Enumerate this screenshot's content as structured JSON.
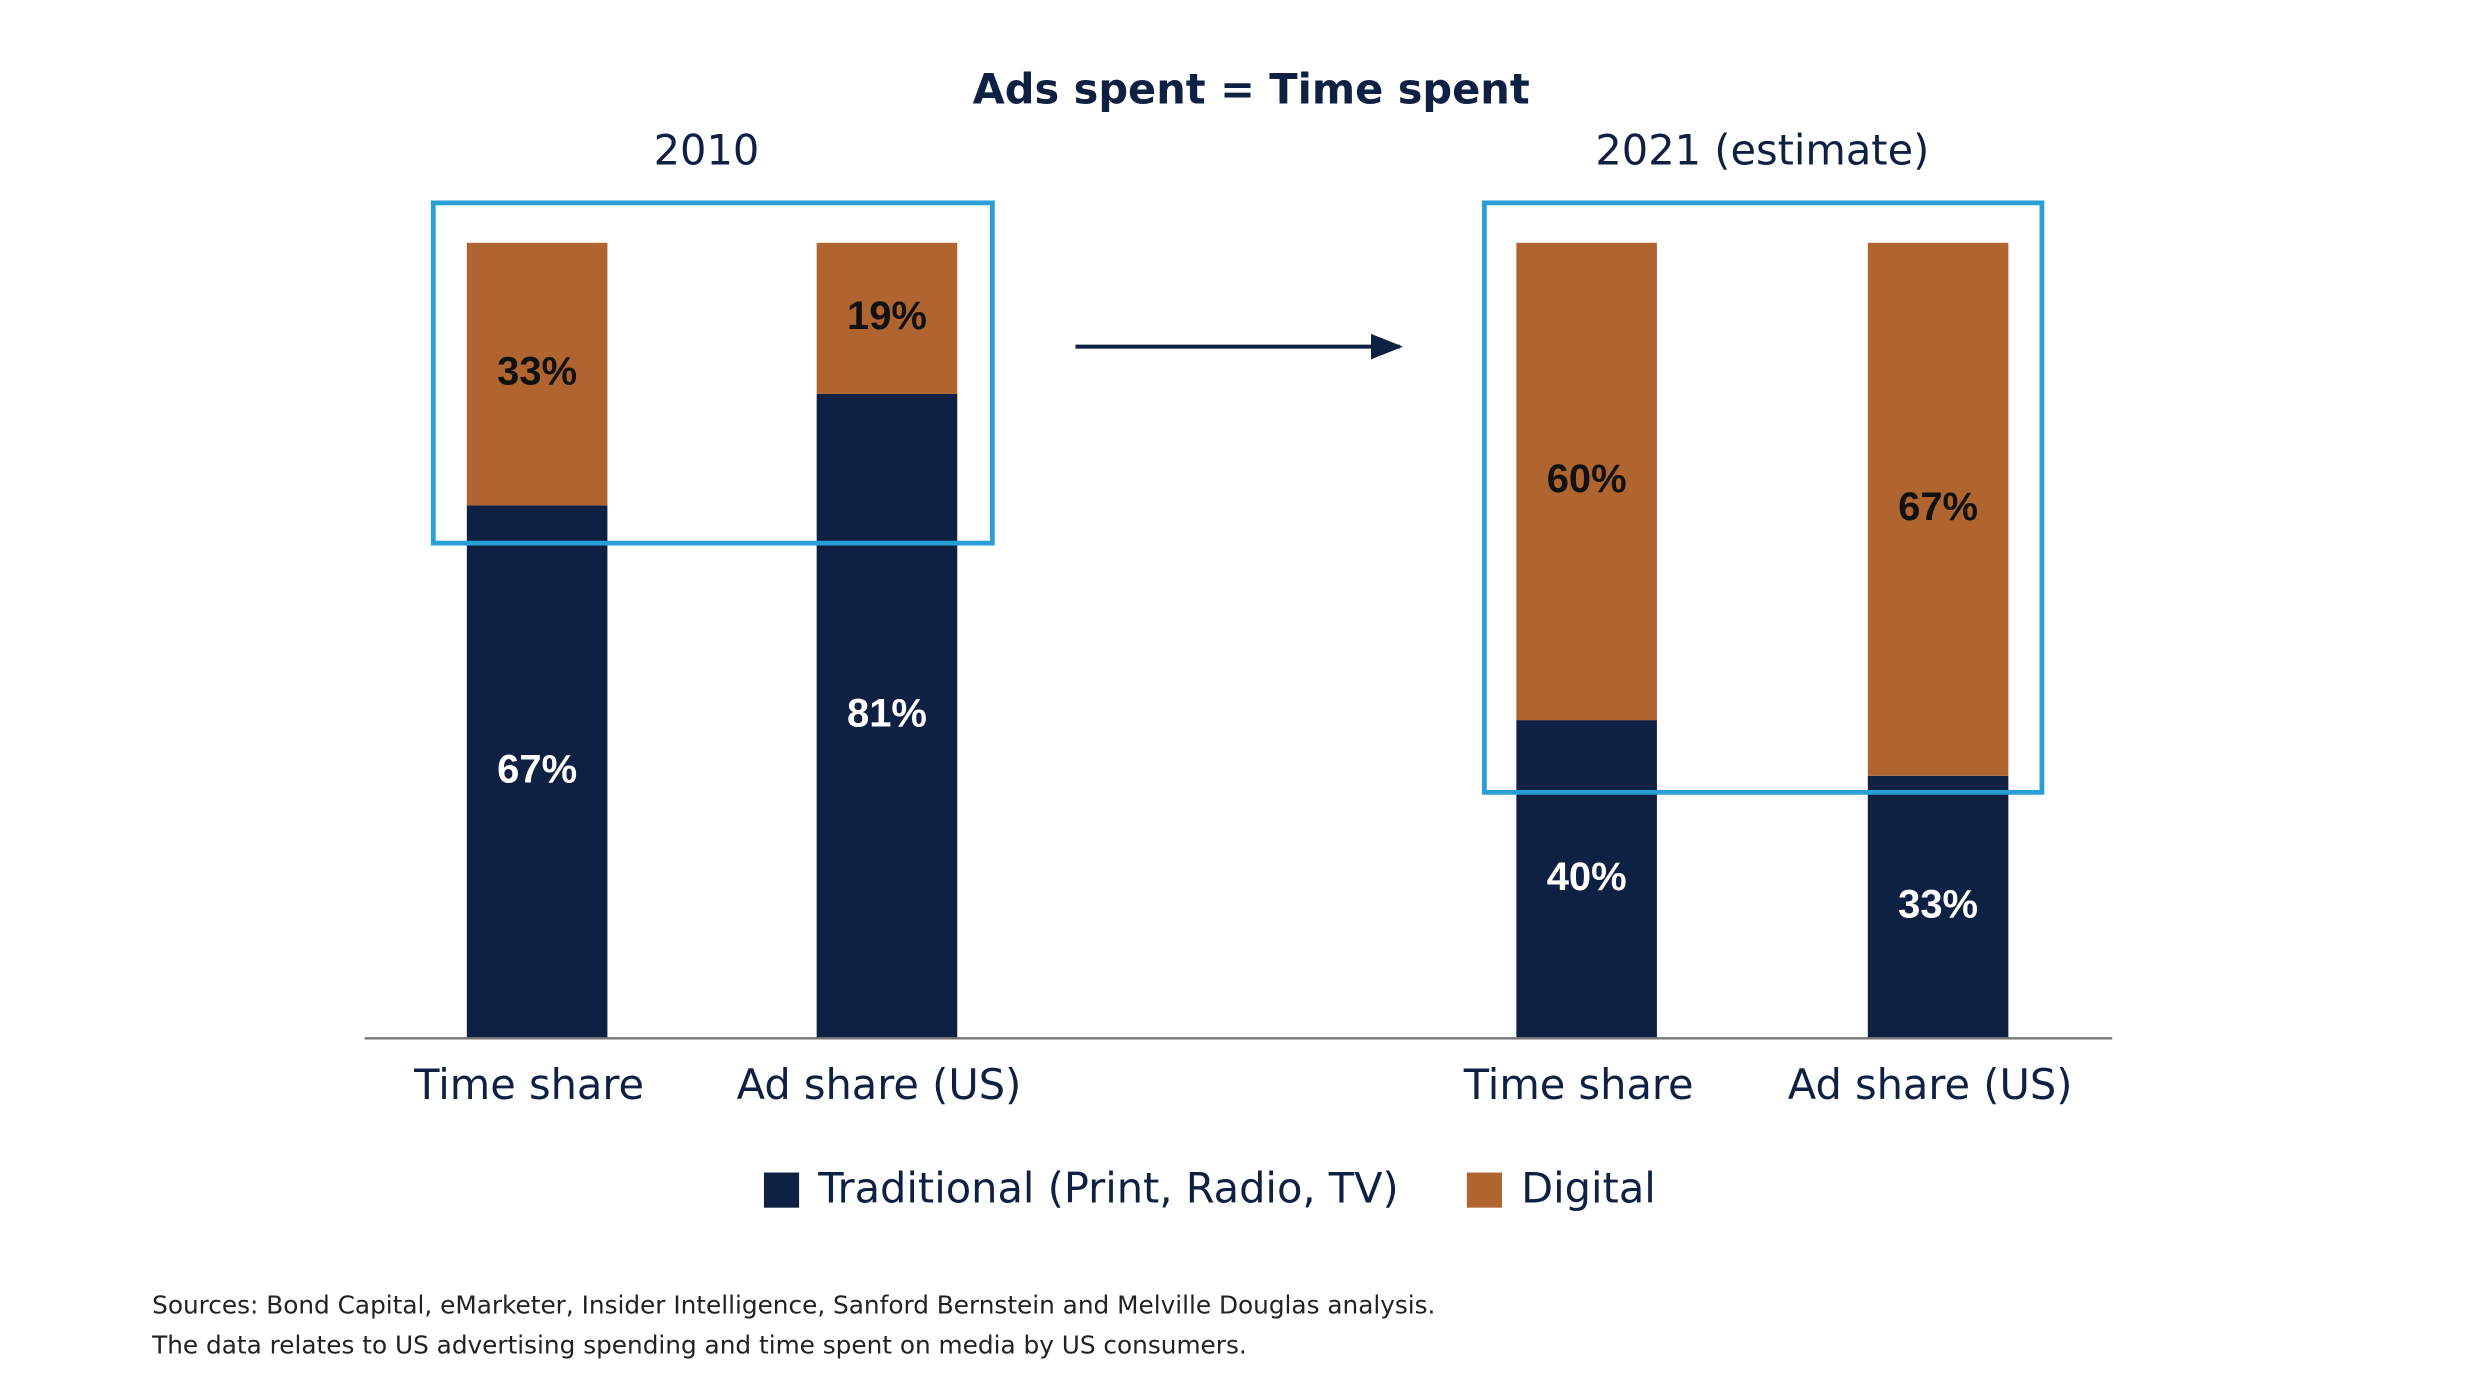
{
  "chart_data": {
    "type": "stacked_bar",
    "title": "Ads spent = Time spent",
    "group_labels": [
      "2010",
      "2021 (estimate)"
    ],
    "categories": [
      "Time share",
      "Ad share (US)",
      "Time share",
      "Ad share (US)"
    ],
    "series": [
      {
        "name": "Traditional (Print, Radio, TV)",
        "color": "#0f2143",
        "values": [
          67,
          81,
          40,
          33
        ],
        "value_labels": [
          "67%",
          "81%",
          "40%",
          "33%"
        ]
      },
      {
        "name": "Digital",
        "color": "#b06530",
        "values": [
          33,
          19,
          60,
          67
        ],
        "value_labels": [
          "33%",
          "19%",
          "60%",
          "67%"
        ]
      }
    ],
    "ylim": [
      0,
      100
    ],
    "notes": [
      "Sources: Bond Capital, eMarketer, Insider Intelligence, Sanford Bernstein and Melville Douglas analysis.",
      "The data relates to US advertising spending and time spent on media by US consumers."
    ]
  }
}
